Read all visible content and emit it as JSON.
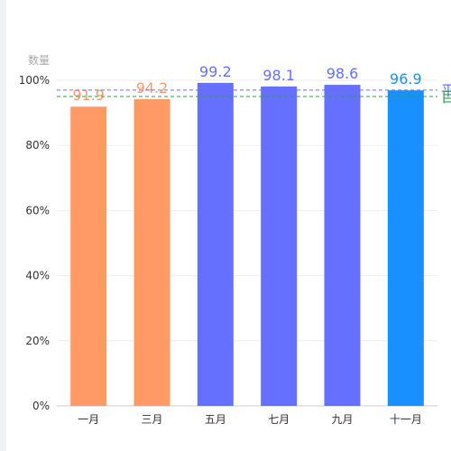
{
  "chart_data": {
    "type": "bar",
    "ylabel": "数量",
    "categories": [
      "一月",
      "三月",
      "五月",
      "七月",
      "九月",
      "十一月"
    ],
    "values": [
      91.9,
      94.2,
      99.2,
      98.1,
      98.6,
      96.9
    ],
    "bar_colors": [
      "#FF9966",
      "#FF9966",
      "#6670FF",
      "#6670FF",
      "#6670FF",
      "#1890FF"
    ],
    "ylim": [
      0,
      100
    ],
    "yticks": [
      0,
      20,
      40,
      60,
      80,
      100
    ],
    "ytick_labels": [
      "0%",
      "20%",
      "40%",
      "60%",
      "80%",
      "100%"
    ],
    "reference_lines": [
      {
        "label": "平",
        "value": 97.0,
        "color": "#6670FF",
        "style": "dashed"
      },
      {
        "label": "目",
        "value": 95.0,
        "color": "#2E9E4F",
        "style": "dashed"
      }
    ],
    "grid": true,
    "legend": "none"
  }
}
